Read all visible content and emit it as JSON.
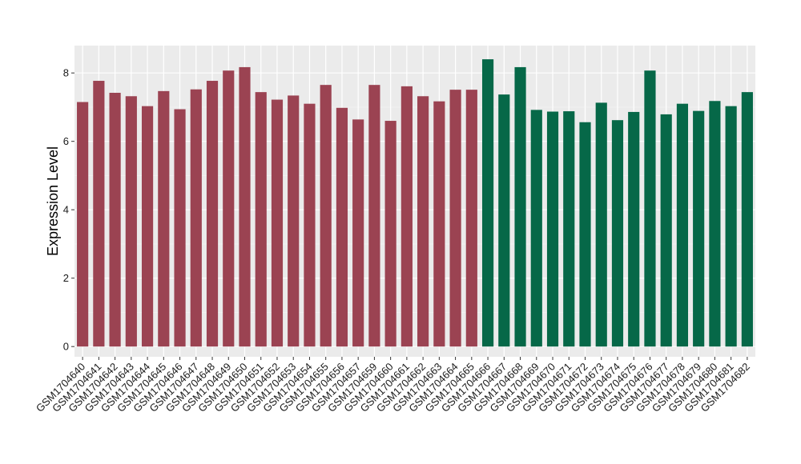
{
  "chart_data": {
    "type": "bar",
    "ylabel": "Expression Level",
    "xlabel": "",
    "ylim": [
      -0.3,
      8.8
    ],
    "yticks": [
      0,
      2,
      4,
      6,
      8
    ],
    "grid": true,
    "panel_background": "#ebebeb",
    "categories": [
      "GSM1704640",
      "GSM1704641",
      "GSM1704642",
      "GSM1704643",
      "GSM1704644",
      "GSM1704645",
      "GSM1704646",
      "GSM1704647",
      "GSM1704648",
      "GSM1704649",
      "GSM1704650",
      "GSM1704651",
      "GSM1704652",
      "GSM1704653",
      "GSM1704654",
      "GSM1704655",
      "GSM1704656",
      "GSM1704657",
      "GSM1704659",
      "GSM1704660",
      "GSM1704661",
      "GSM1704662",
      "GSM1704663",
      "GSM1704664",
      "GSM1704665",
      "GSM1704666",
      "GSM1704667",
      "GSM1704668",
      "GSM1704669",
      "GSM1704670",
      "GSM1704671",
      "GSM1704672",
      "GSM1704673",
      "GSM1704674",
      "GSM1704675",
      "GSM1704676",
      "GSM1704677",
      "GSM1704678",
      "GSM1704679",
      "GSM1704680",
      "GSM1704681",
      "GSM1704682"
    ],
    "values": [
      7.15,
      7.77,
      7.42,
      7.32,
      7.03,
      7.47,
      6.94,
      7.52,
      7.77,
      8.07,
      8.17,
      7.44,
      7.22,
      7.34,
      7.1,
      7.65,
      6.98,
      6.64,
      7.65,
      6.6,
      7.61,
      7.32,
      7.17,
      7.51,
      7.51,
      8.4,
      7.37,
      8.17,
      6.92,
      6.87,
      6.88,
      6.56,
      7.13,
      6.62,
      6.86,
      8.07,
      6.79,
      7.1,
      6.89,
      7.18,
      7.03,
      7.44
    ],
    "colors": [
      "#9b4352",
      "#9b4352",
      "#9b4352",
      "#9b4352",
      "#9b4352",
      "#9b4352",
      "#9b4352",
      "#9b4352",
      "#9b4352",
      "#9b4352",
      "#9b4352",
      "#9b4352",
      "#9b4352",
      "#9b4352",
      "#9b4352",
      "#9b4352",
      "#9b4352",
      "#9b4352",
      "#9b4352",
      "#9b4352",
      "#9b4352",
      "#9b4352",
      "#9b4352",
      "#9b4352",
      "#9b4352",
      "#066848",
      "#066848",
      "#066848",
      "#066848",
      "#066848",
      "#066848",
      "#066848",
      "#066848",
      "#066848",
      "#066848",
      "#066848",
      "#066848",
      "#066848",
      "#066848",
      "#066848",
      "#066848",
      "#066848"
    ]
  }
}
